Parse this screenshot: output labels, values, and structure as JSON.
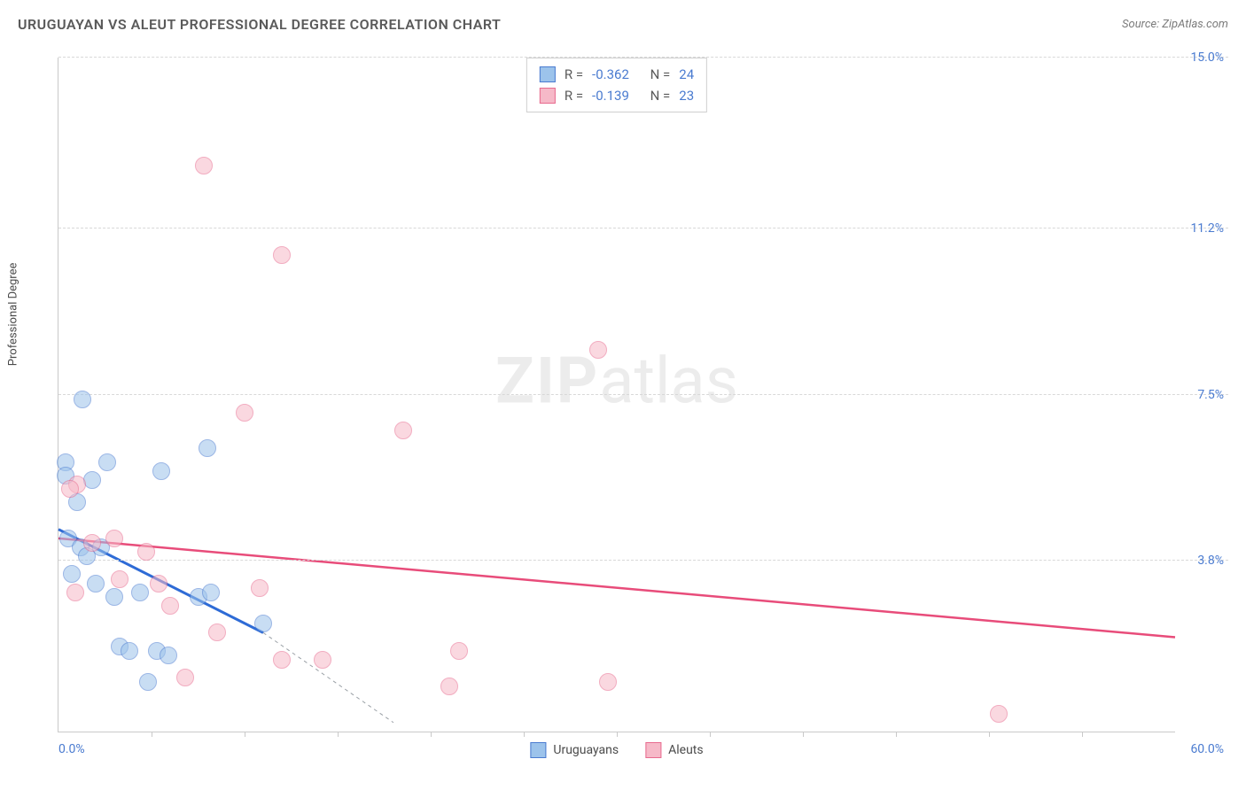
{
  "title": "URUGUAYAN VS ALEUT PROFESSIONAL DEGREE CORRELATION CHART",
  "source": "Source: ZipAtlas.com",
  "watermark_bold": "ZIP",
  "watermark_rest": "atlas",
  "y_axis_label": "Professional Degree",
  "chart": {
    "type": "scatter",
    "xlim": [
      0,
      60
    ],
    "ylim": [
      0,
      15
    ],
    "x_tick_step": 5,
    "y_ticks": [
      3.8,
      7.5,
      11.2,
      15.0
    ],
    "y_tick_labels": [
      "3.8%",
      "7.5%",
      "11.2%",
      "15.0%"
    ],
    "x_label_min": "0.0%",
    "x_label_max": "60.0%",
    "background_color": "#ffffff",
    "grid_color": "#d8d8d8",
    "axis_color": "#c9c9c9",
    "point_radius": 10,
    "point_opacity": 0.55,
    "series": [
      {
        "name": "Uruguayans",
        "fill_color": "#9cc3eb",
        "stroke_color": "#4a7bd0",
        "trend_color": "#2e6bd6",
        "trend_width": 3,
        "r_label": "R =",
        "r_value": "-0.362",
        "n_label": "N =",
        "n_value": "24",
        "trend": {
          "x1": 0,
          "y1": 4.5,
          "x2": 11,
          "y2": 2.2,
          "dash_to_x": 18,
          "dash_to_y": 0.2
        },
        "points": [
          {
            "x": 1.3,
            "y": 7.4
          },
          {
            "x": 0.4,
            "y": 6.0
          },
          {
            "x": 0.4,
            "y": 5.7
          },
          {
            "x": 1.8,
            "y": 5.6
          },
          {
            "x": 2.6,
            "y": 6.0
          },
          {
            "x": 5.5,
            "y": 5.8
          },
          {
            "x": 8.0,
            "y": 6.3
          },
          {
            "x": 1.0,
            "y": 5.1
          },
          {
            "x": 0.5,
            "y": 4.3
          },
          {
            "x": 1.2,
            "y": 4.1
          },
          {
            "x": 1.5,
            "y": 3.9
          },
          {
            "x": 2.3,
            "y": 4.1
          },
          {
            "x": 3.0,
            "y": 3.0
          },
          {
            "x": 4.4,
            "y": 3.1
          },
          {
            "x": 7.5,
            "y": 3.0
          },
          {
            "x": 8.2,
            "y": 3.1
          },
          {
            "x": 11.0,
            "y": 2.4
          },
          {
            "x": 3.3,
            "y": 1.9
          },
          {
            "x": 3.8,
            "y": 1.8
          },
          {
            "x": 5.3,
            "y": 1.8
          },
          {
            "x": 5.9,
            "y": 1.7
          },
          {
            "x": 4.8,
            "y": 1.1
          },
          {
            "x": 0.7,
            "y": 3.5
          },
          {
            "x": 2.0,
            "y": 3.3
          }
        ]
      },
      {
        "name": "Aleuts",
        "fill_color": "#f6b9c8",
        "stroke_color": "#e86a8e",
        "trend_color": "#e84c7a",
        "trend_width": 2.5,
        "r_label": "R =",
        "r_value": "-0.139",
        "n_label": "N =",
        "n_value": "23",
        "trend": {
          "x1": 0,
          "y1": 4.3,
          "x2": 60,
          "y2": 2.1
        },
        "points": [
          {
            "x": 7.8,
            "y": 12.6
          },
          {
            "x": 12.0,
            "y": 10.6
          },
          {
            "x": 29.0,
            "y": 8.5
          },
          {
            "x": 10.0,
            "y": 7.1
          },
          {
            "x": 18.5,
            "y": 6.7
          },
          {
            "x": 1.0,
            "y": 5.5
          },
          {
            "x": 1.8,
            "y": 4.2
          },
          {
            "x": 3.0,
            "y": 4.3
          },
          {
            "x": 4.7,
            "y": 4.0
          },
          {
            "x": 3.3,
            "y": 3.4
          },
          {
            "x": 5.4,
            "y": 3.3
          },
          {
            "x": 10.8,
            "y": 3.2
          },
          {
            "x": 6.0,
            "y": 2.8
          },
          {
            "x": 8.5,
            "y": 2.2
          },
          {
            "x": 0.9,
            "y": 3.1
          },
          {
            "x": 6.8,
            "y": 1.2
          },
          {
            "x": 12.0,
            "y": 1.6
          },
          {
            "x": 14.2,
            "y": 1.6
          },
          {
            "x": 21.5,
            "y": 1.8
          },
          {
            "x": 21.0,
            "y": 1.0
          },
          {
            "x": 29.5,
            "y": 1.1
          },
          {
            "x": 50.5,
            "y": 0.4
          },
          {
            "x": 0.6,
            "y": 5.4
          }
        ]
      }
    ]
  },
  "legend_items": [
    "Uruguayans",
    "Aleuts"
  ]
}
